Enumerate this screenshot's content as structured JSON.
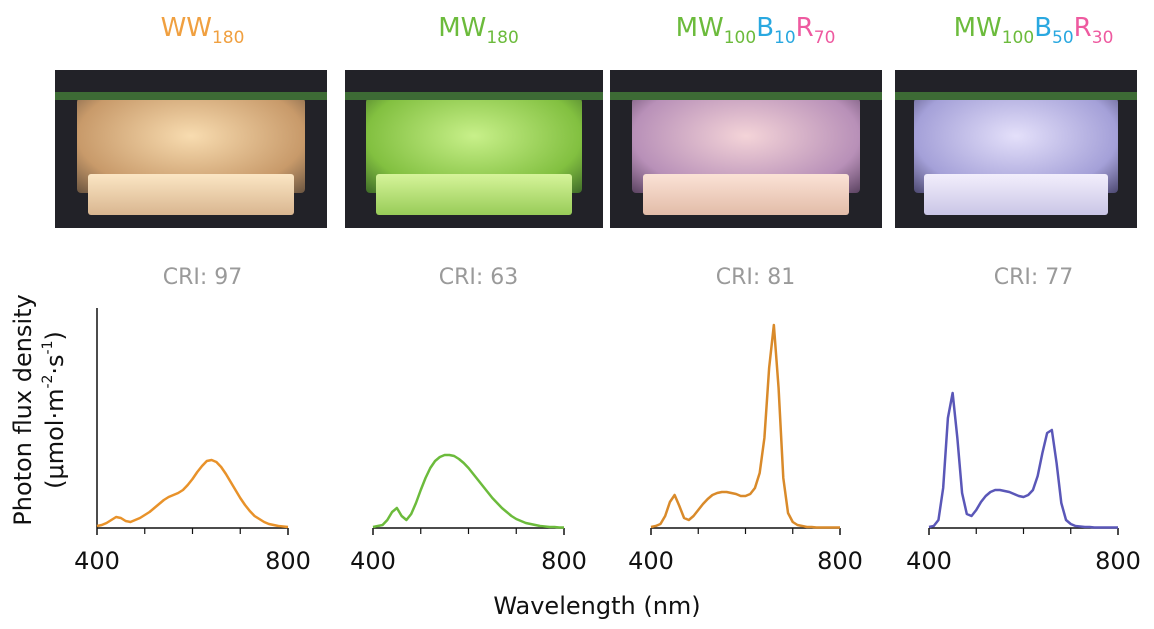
{
  "figure": {
    "ylabel": [
      [
        {
          "text": "Photon flux density"
        }
      ],
      [
        {
          "text": "(μmol·m"
        },
        {
          "text": "-2",
          "superscript": true
        },
        {
          "text": "·s"
        },
        {
          "text": "-1",
          "superscript": true
        },
        {
          "text": ")"
        }
      ]
    ],
    "xlabel": "Wavelength (nm)"
  },
  "chart_data": [
    {
      "type": "line",
      "title": [
        {
          "text": "WW",
          "color": "#f0a040"
        },
        {
          "text": "180",
          "color": "#f0a040",
          "subscript": true
        }
      ],
      "subtitle": "CRI: 97",
      "x": [
        400,
        410,
        420,
        430,
        440,
        450,
        460,
        470,
        480,
        490,
        500,
        510,
        520,
        530,
        540,
        550,
        560,
        570,
        580,
        590,
        600,
        610,
        620,
        630,
        640,
        650,
        660,
        670,
        680,
        690,
        700,
        710,
        720,
        730,
        740,
        750,
        760,
        770,
        780,
        790,
        800
      ],
      "values": [
        2,
        3,
        5,
        8,
        11,
        10,
        7,
        6,
        8,
        10,
        13,
        16,
        20,
        24,
        28,
        31,
        33,
        35,
        38,
        43,
        49,
        56,
        62,
        67,
        68,
        66,
        61,
        54,
        46,
        38,
        30,
        23,
        17,
        12,
        9,
        6,
        4,
        3,
        2,
        1.5,
        1
      ],
      "color": "#e8922a",
      "xlim": [
        400,
        800
      ],
      "xticks": [
        400,
        800
      ],
      "minor_xticks": [
        500,
        600,
        700
      ],
      "ylim": [
        0,
        210
      ],
      "yaxis": true
    },
    {
      "type": "line",
      "title": [
        {
          "text": "MW",
          "color": "#6cbb3c"
        },
        {
          "text": "180",
          "color": "#6cbb3c",
          "subscript": true
        }
      ],
      "subtitle": "CRI: 63",
      "x": [
        400,
        410,
        420,
        430,
        440,
        450,
        460,
        470,
        480,
        490,
        500,
        510,
        520,
        530,
        540,
        550,
        560,
        570,
        580,
        590,
        600,
        610,
        620,
        630,
        640,
        650,
        660,
        670,
        680,
        690,
        700,
        710,
        720,
        730,
        740,
        750,
        760,
        770,
        780,
        790,
        800
      ],
      "values": [
        1,
        2,
        3,
        8,
        16,
        20,
        12,
        8,
        14,
        25,
        38,
        50,
        60,
        67,
        71,
        73,
        73,
        72,
        69,
        65,
        60,
        54,
        48,
        42,
        36,
        30,
        25,
        20,
        16,
        12,
        9,
        7,
        5,
        4,
        3,
        2,
        1.5,
        1,
        1,
        0.5,
        0.5
      ],
      "color": "#6cbb3c",
      "xlim": [
        400,
        800
      ],
      "xticks": [
        400,
        800
      ],
      "minor_xticks": [
        500,
        600,
        700
      ],
      "ylim": [
        0,
        210
      ],
      "yaxis": false
    },
    {
      "type": "line",
      "title": [
        {
          "text": "MW",
          "color": "#6cbb3c"
        },
        {
          "text": "100",
          "color": "#6cbb3c",
          "subscript": true
        },
        {
          "text": "B",
          "color": "#29a8e0"
        },
        {
          "text": "10",
          "color": "#29a8e0",
          "subscript": true
        },
        {
          "text": "R",
          "color": "#ee5aa0"
        },
        {
          "text": "70",
          "color": "#ee5aa0",
          "subscript": true
        }
      ],
      "subtitle": "CRI: 81",
      "x": [
        400,
        410,
        420,
        430,
        440,
        450,
        460,
        470,
        480,
        490,
        500,
        510,
        520,
        530,
        540,
        550,
        560,
        570,
        580,
        590,
        600,
        610,
        620,
        630,
        640,
        650,
        660,
        670,
        680,
        690,
        700,
        710,
        720,
        730,
        740,
        750,
        760,
        770,
        780,
        790,
        800
      ],
      "values": [
        1,
        2,
        4,
        12,
        26,
        33,
        22,
        10,
        8,
        12,
        18,
        24,
        29,
        33,
        35,
        36,
        36,
        35,
        34,
        32,
        32,
        34,
        40,
        55,
        90,
        160,
        203,
        140,
        50,
        15,
        6,
        3,
        2,
        1,
        1,
        0.5,
        0.5,
        0.5,
        0.5,
        0.5,
        0.5
      ],
      "color": "#d98a2a",
      "xlim": [
        400,
        800
      ],
      "xticks": [
        400,
        800
      ],
      "minor_xticks": [
        500,
        600,
        700
      ],
      "ylim": [
        0,
        210
      ],
      "yaxis": false
    },
    {
      "type": "line",
      "title": [
        {
          "text": "MW",
          "color": "#6cbb3c"
        },
        {
          "text": "100",
          "color": "#6cbb3c",
          "subscript": true
        },
        {
          "text": "B",
          "color": "#29a8e0"
        },
        {
          "text": "50",
          "color": "#29a8e0",
          "subscript": true
        },
        {
          "text": "R",
          "color": "#ee5aa0"
        },
        {
          "text": "30",
          "color": "#ee5aa0",
          "subscript": true
        }
      ],
      "subtitle": "CRI: 77",
      "x": [
        400,
        410,
        420,
        430,
        440,
        450,
        460,
        470,
        480,
        490,
        500,
        510,
        520,
        530,
        540,
        550,
        560,
        570,
        580,
        590,
        600,
        610,
        620,
        630,
        640,
        650,
        660,
        670,
        680,
        690,
        700,
        710,
        720,
        730,
        740,
        750,
        760,
        770,
        780,
        790,
        800
      ],
      "values": [
        1,
        2,
        8,
        40,
        110,
        135,
        90,
        35,
        14,
        12,
        18,
        26,
        32,
        36,
        38,
        38,
        37,
        36,
        34,
        32,
        31,
        33,
        38,
        52,
        75,
        95,
        98,
        65,
        25,
        8,
        4,
        2,
        1.5,
        1,
        1,
        0.5,
        0.5,
        0.5,
        0.5,
        0.5,
        0.5
      ],
      "color": "#5a57b8",
      "xlim": [
        400,
        800
      ],
      "xticks": [
        400,
        800
      ],
      "minor_xticks": [
        500,
        600,
        700
      ],
      "ylim": [
        0,
        210
      ],
      "yaxis": false
    }
  ]
}
